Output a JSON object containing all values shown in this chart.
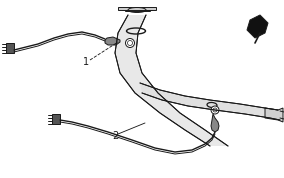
{
  "line_color": "#1a1a1a",
  "dark_color": "#111111",
  "gray_color": "#888888",
  "light_gray": "#cccccc",
  "label_1": "1",
  "label_2": "2",
  "fig_width": 2.84,
  "fig_height": 1.78,
  "dpi": 100
}
